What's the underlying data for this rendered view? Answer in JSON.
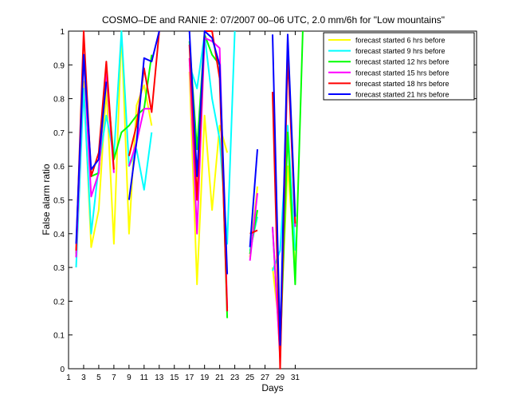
{
  "chart_data": {
    "type": "line",
    "title": "COSMO–DE and RANIE 2: 07/2007 00–06 UTC, 2.0 mm/6h for \"Low mountains\"",
    "xlabel": "Days",
    "ylabel": "False alarm ratio",
    "xlim": [
      1,
      55
    ],
    "ylim": [
      0,
      1
    ],
    "xticks": [
      1,
      3,
      5,
      7,
      9,
      11,
      13,
      15,
      17,
      19,
      21,
      23,
      25,
      27,
      29,
      31
    ],
    "yticks": [
      0,
      0.1,
      0.2,
      0.3,
      0.4,
      0.5,
      0.6,
      0.7,
      0.8,
      0.9,
      1
    ],
    "xtick_labels": [
      "1",
      "3",
      "5",
      "7",
      "9",
      "11",
      "13",
      "15",
      "17",
      "19",
      "21",
      "23",
      "25",
      "27",
      "29",
      "31"
    ],
    "ytick_labels": [
      "0",
      "0.1",
      "0.2",
      "0.3",
      "0.4",
      "0.5",
      "0.6",
      "0.7",
      "0.8",
      "0.9",
      "1"
    ],
    "legend_position": "top-right",
    "grid": false,
    "series": [
      {
        "name": "forecast started 6 hrs before",
        "color": "#ffff00",
        "values": [
          null,
          0.33,
          0.85,
          0.36,
          0.47,
          0.83,
          0.37,
          1.0,
          0.4,
          0.78,
          0.84,
          0.72,
          null,
          null,
          null,
          null,
          0.88,
          0.25,
          0.75,
          0.47,
          0.72,
          0.64,
          null,
          null,
          0.33,
          0.54,
          null,
          0.3,
          0.1,
          0.6,
          0.3,
          null
        ]
      },
      {
        "name": "forecast started 9 hrs before",
        "color": "#00ffff",
        "values": [
          null,
          0.3,
          0.83,
          0.4,
          0.6,
          0.75,
          0.63,
          1.0,
          0.6,
          0.65,
          0.53,
          0.7,
          null,
          null,
          null,
          null,
          0.9,
          0.83,
          0.99,
          0.8,
          0.68,
          0.37,
          1.0,
          null,
          0.35,
          0.45,
          null,
          0.29,
          0.35,
          0.72,
          0.35,
          null
        ]
      },
      {
        "name": "forecast started 12 hrs before",
        "color": "#00ff00",
        "values": [
          null,
          0.34,
          0.92,
          0.57,
          0.58,
          0.87,
          0.62,
          0.7,
          0.72,
          0.75,
          0.77,
          0.93,
          null,
          null,
          null,
          null,
          0.97,
          0.65,
          0.99,
          0.93,
          0.9,
          0.15,
          null,
          null,
          0.34,
          0.47,
          null,
          0.42,
          0.04,
          0.7,
          0.25,
          1.0
        ]
      },
      {
        "name": "forecast started 15 hrs before",
        "color": "#ff00ff",
        "values": [
          null,
          0.33,
          0.93,
          0.51,
          0.58,
          0.88,
          0.58,
          null,
          0.6,
          0.67,
          0.77,
          0.77,
          null,
          null,
          null,
          null,
          0.92,
          0.4,
          0.98,
          0.97,
          0.95,
          0.18,
          null,
          null,
          0.32,
          0.52,
          null,
          0.42,
          0.03,
          0.97,
          0.42,
          null
        ]
      },
      {
        "name": "forecast started 18 hrs before",
        "color": "#ff0000",
        "values": [
          null,
          0.35,
          1.0,
          0.57,
          0.64,
          0.91,
          0.59,
          null,
          0.63,
          0.72,
          0.89,
          0.76,
          1.0,
          null,
          null,
          null,
          0.96,
          0.5,
          1.0,
          1.0,
          0.86,
          0.17,
          null,
          null,
          0.4,
          0.41,
          null,
          0.82,
          0.0,
          0.93,
          0.43,
          null
        ]
      },
      {
        "name": "forecast started 21 hrs before",
        "color": "#0000ff",
        "values": [
          null,
          0.37,
          0.93,
          0.59,
          0.62,
          0.85,
          null,
          null,
          0.5,
          0.67,
          0.92,
          0.91,
          1.0,
          null,
          null,
          null,
          1.0,
          0.57,
          1.0,
          0.98,
          0.9,
          0.28,
          null,
          null,
          0.36,
          0.65,
          null,
          0.99,
          0.07,
          0.99,
          0.45,
          null
        ]
      }
    ]
  }
}
